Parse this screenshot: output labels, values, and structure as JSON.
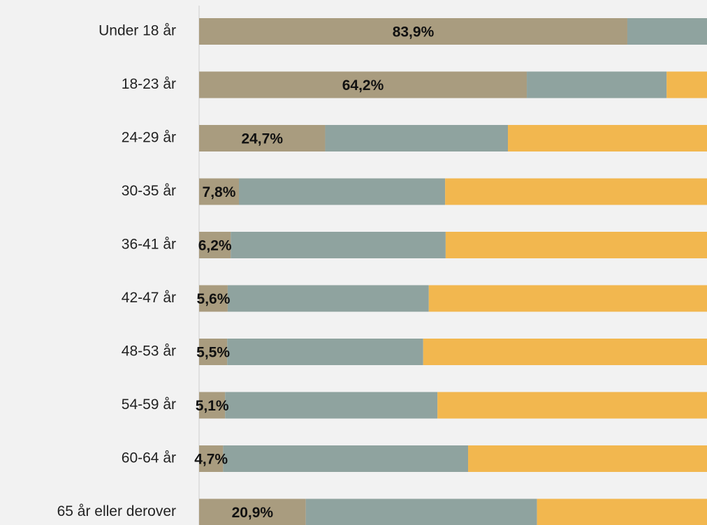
{
  "chart_data": {
    "type": "stacked-bar-horizontal",
    "categories": [
      "Under 18 år",
      "18-23 år",
      "24-29 år",
      "30-35 år",
      "36-41 år",
      "42-47 år",
      "48-53 år",
      "54-59 år",
      "60-64 år",
      "65 år eller derover"
    ],
    "series": [
      {
        "color": "#a99c7f",
        "values": [
          83.9,
          64.2,
          24.7,
          7.8,
          6.2,
          5.6,
          5.5,
          5.1,
          4.7,
          20.9
        ],
        "value_labels": [
          "83,9%",
          "64,2%",
          "24,7%",
          "7,8%",
          "6,2%",
          "5,6%",
          "5,5%",
          "5,1%",
          "4,7%",
          "20,9%"
        ]
      },
      {
        "color": "#8fa39f",
        "values": [
          16.1,
          27.4,
          35.8,
          40.4,
          42.1,
          39.4,
          38.4,
          41.6,
          48.0,
          45.3
        ]
      },
      {
        "color": "#f2b74f",
        "values": [
          0,
          8.4,
          39.5,
          51.8,
          51.7,
          55.0,
          56.1,
          53.3,
          47.3,
          33.8
        ]
      }
    ],
    "xlim": [
      0,
      100
    ]
  }
}
